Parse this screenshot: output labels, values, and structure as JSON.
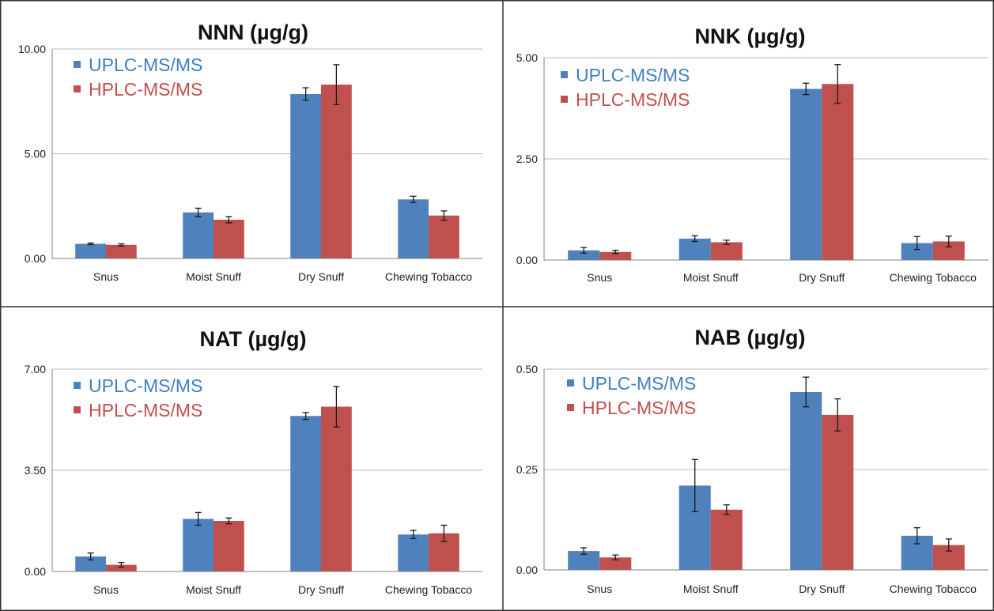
{
  "colors": {
    "uplc": "#4f81bd",
    "hplc": "#c0504d",
    "uplc_text": "#3f7fbf",
    "hplc_text": "#c0504d",
    "grid": "#b9b9b9",
    "axis": "#808080",
    "frame": "#333333",
    "errorbar": "#1a1a1a"
  },
  "chart_data": [
    {
      "type": "bar",
      "title": "NNN (µg/g)",
      "categories": [
        "Snus",
        "Moist Snuff",
        "Dry Snuff",
        "Chewing Tobacco"
      ],
      "ylim": [
        0,
        10
      ],
      "yticks": [
        0,
        5,
        10
      ],
      "ytick_labels": [
        "0.00",
        "5.00",
        "10.00"
      ],
      "grid": true,
      "legend": "top-left",
      "series": [
        {
          "name": "UPLC-MS/MS",
          "values": [
            0.7,
            2.2,
            7.85,
            2.82
          ],
          "errors": [
            0.04,
            0.2,
            0.3,
            0.15
          ]
        },
        {
          "name": "HPLC-MS/MS",
          "values": [
            0.65,
            1.85,
            8.3,
            2.05
          ],
          "errors": [
            0.05,
            0.15,
            0.95,
            0.22
          ]
        }
      ]
    },
    {
      "type": "bar",
      "title": "NNK (µg/g)",
      "categories": [
        "Snus",
        "Moist Snuff",
        "Dry Snuff",
        "Chewing Tobacco"
      ],
      "ylim": [
        0,
        5
      ],
      "yticks": [
        0,
        2.5,
        5
      ],
      "ytick_labels": [
        "0.00",
        "2.50",
        "5.00"
      ],
      "grid": true,
      "legend": "top-left",
      "series": [
        {
          "name": "UPLC-MS/MS",
          "values": [
            0.24,
            0.53,
            4.23,
            0.42
          ],
          "errors": [
            0.07,
            0.07,
            0.14,
            0.16
          ]
        },
        {
          "name": "HPLC-MS/MS",
          "values": [
            0.2,
            0.44,
            4.35,
            0.46
          ],
          "errors": [
            0.04,
            0.05,
            0.48,
            0.13
          ]
        }
      ]
    },
    {
      "type": "bar",
      "title": "NAT (µg/g)",
      "categories": [
        "Snus",
        "Moist Snuff",
        "Dry Snuff",
        "Chewing Tobacco"
      ],
      "ylim": [
        0,
        7
      ],
      "yticks": [
        0,
        3.5,
        7
      ],
      "ytick_labels": [
        "0.00",
        "3.50",
        "7.00"
      ],
      "grid": true,
      "legend": "top-left",
      "series": [
        {
          "name": "UPLC-MS/MS",
          "values": [
            0.52,
            1.82,
            5.38,
            1.28
          ],
          "errors": [
            0.12,
            0.22,
            0.12,
            0.14
          ]
        },
        {
          "name": "HPLC-MS/MS",
          "values": [
            0.23,
            1.75,
            5.7,
            1.32
          ],
          "errors": [
            0.08,
            0.1,
            0.7,
            0.28
          ]
        }
      ]
    },
    {
      "type": "bar",
      "title": "NAB (µg/g)",
      "categories": [
        "Snus",
        "Moist Snuff",
        "Dry Snuff",
        "Chewing Tobacco"
      ],
      "ylim": [
        0,
        0.5
      ],
      "yticks": [
        0,
        0.25,
        0.5
      ],
      "ytick_labels": [
        "0.00",
        "0.25",
        "0.50"
      ],
      "grid": true,
      "legend": "top-left",
      "series": [
        {
          "name": "UPLC-MS/MS",
          "values": [
            0.047,
            0.21,
            0.443,
            0.085
          ],
          "errors": [
            0.008,
            0.065,
            0.037,
            0.02
          ]
        },
        {
          "name": "HPLC-MS/MS",
          "values": [
            0.031,
            0.15,
            0.386,
            0.062
          ],
          "errors": [
            0.006,
            0.012,
            0.04,
            0.015
          ]
        }
      ]
    }
  ]
}
